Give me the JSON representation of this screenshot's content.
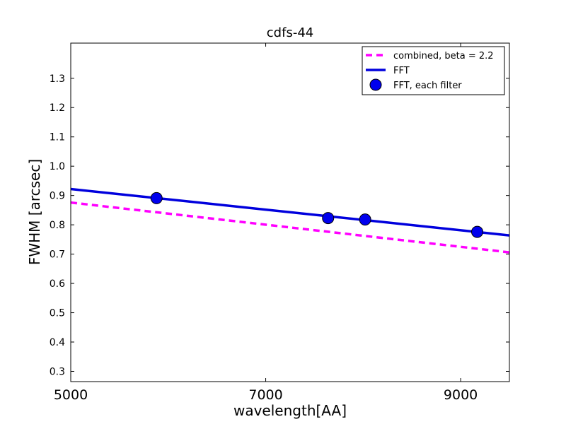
{
  "chart_data": {
    "type": "line",
    "title": "cdfs-44",
    "xlabel": "wavelength[AA]",
    "ylabel": "FWHM [arcsec]",
    "xlim": [
      5000,
      9500
    ],
    "ylim": [
      0.265,
      1.42
    ],
    "xticks": [
      5000,
      7000,
      9000
    ],
    "xtick_labels": [
      "5000",
      "7000",
      "9000"
    ],
    "yticks": [
      0.3,
      0.4,
      0.5,
      0.6,
      0.7,
      0.8,
      0.9,
      1.0,
      1.1,
      1.2,
      1.3
    ],
    "ytick_labels": [
      "0.3",
      "0.4",
      "0.5",
      "0.6",
      "0.7",
      "0.8",
      "0.9",
      "1.0",
      "1.1",
      "1.2",
      "1.3"
    ],
    "grid": false,
    "legend_position": "top-right",
    "series": [
      {
        "name": "combined, beta = 2.2",
        "kind": "line",
        "style": "dashed",
        "color": "#ff00ff",
        "x": [
          5000,
          9500
        ],
        "y": [
          0.876,
          0.706
        ]
      },
      {
        "name": "FFT",
        "kind": "line",
        "style": "solid",
        "color": "#0000dd",
        "x": [
          5000,
          9500
        ],
        "y": [
          0.922,
          0.764
        ]
      },
      {
        "name": "FFT, each filter",
        "kind": "scatter",
        "color": "#0000ee",
        "x": [
          5880,
          7640,
          8020,
          9170
        ],
        "y": [
          0.891,
          0.823,
          0.818,
          0.776
        ]
      }
    ]
  }
}
